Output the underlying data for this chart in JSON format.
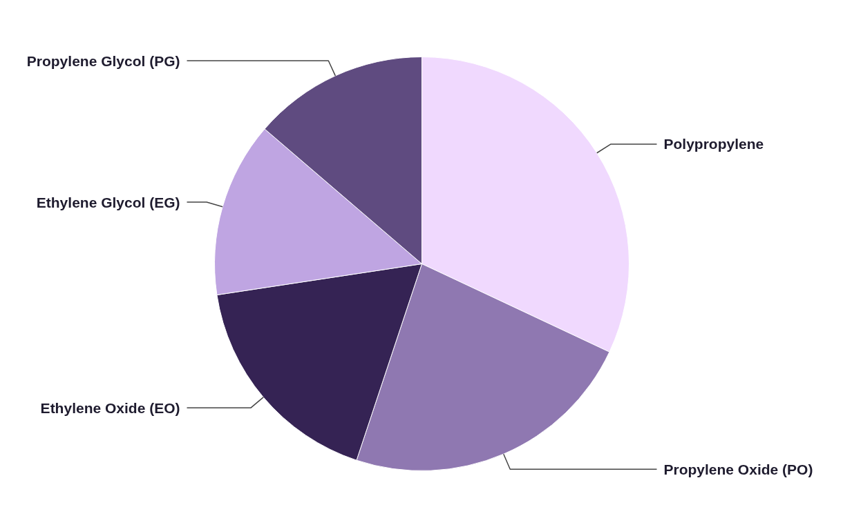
{
  "chart_data": {
    "type": "pie",
    "categories": [
      "Polypropylene",
      "Propylene Oxide (PO)",
      "Ethylene Oxide (EO)",
      "Ethylene Glycol (EG)",
      "Propylene Glycol (PG)"
    ],
    "values": [
      32.0,
      23.1,
      17.5,
      13.7,
      13.7
    ],
    "colors": [
      "#f0d9fe",
      "#8f78b1",
      "#352354",
      "#bfa5e2",
      "#5f4b80"
    ]
  }
}
